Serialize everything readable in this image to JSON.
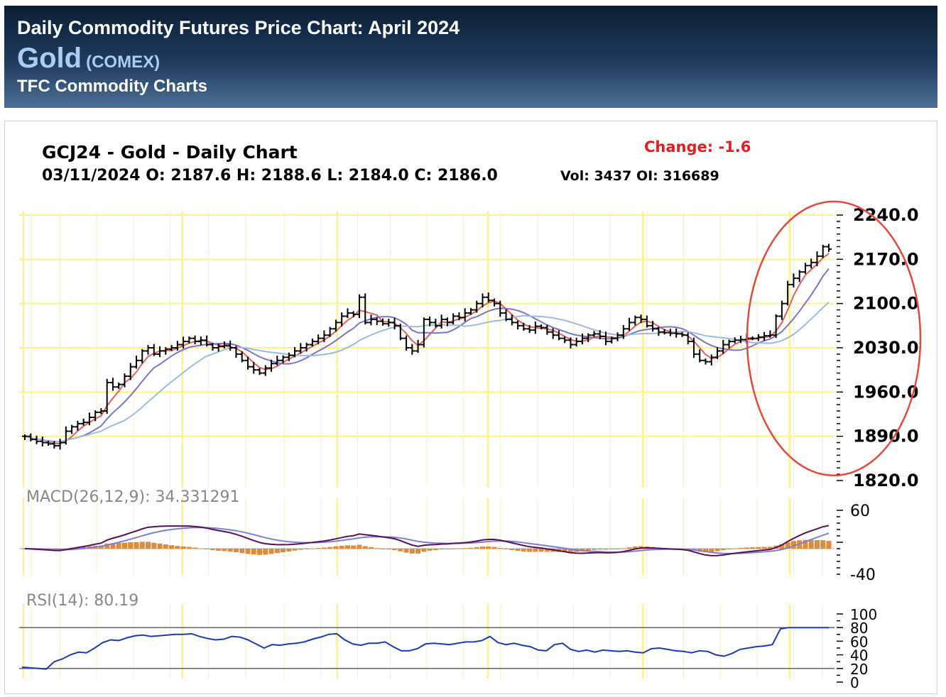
{
  "header": {
    "title": "Daily Commodity Futures Price Chart: April 2024",
    "symbol": "Gold",
    "exchange": "(COMEX)",
    "subtitle": "TFC Commodity Charts"
  },
  "chart_header": {
    "title": "GCJ24 - Gold - Daily Chart",
    "ohlc_line": "03/11/2024 O: 2187.6 H: 2188.6 L: 2184.0 C: 2186.0",
    "vol_oi": "Vol: 3437 OI: 316689",
    "change": "Change: -1.6"
  },
  "colors": {
    "bars": "#000000",
    "ma_short": "#e0605a",
    "ma_mid": "#7b74cc",
    "ma_long": "#98bde0",
    "highlight_ellipse": "#e04a3a",
    "change_text": "#e02020",
    "grid_major": "#fff28a",
    "macd_line": "#5a1050",
    "macd_signal": "#7b7fdc",
    "macd_hist": "#e08a3a",
    "rsi_line": "#1a3cb0"
  },
  "chart_data": [
    {
      "type": "ohlc",
      "title": "GCJ24 - Gold - Daily Chart",
      "ylim": [
        1820,
        2240
      ],
      "yticks": [
        "2240.0",
        "2170.0",
        "2100.0",
        "2030.0",
        "1960.0",
        "1890.0",
        "1820.0"
      ],
      "close": [
        1890,
        1885,
        1882,
        1880,
        1878,
        1875,
        1880,
        1898,
        1905,
        1910,
        1912,
        1920,
        1928,
        1930,
        1975,
        1968,
        1972,
        1985,
        2000,
        2010,
        2025,
        2030,
        2020,
        2025,
        2028,
        2030,
        2035,
        2040,
        2045,
        2040,
        2042,
        2035,
        2030,
        2032,
        2034,
        2030,
        2020,
        2010,
        2000,
        1995,
        1990,
        1998,
        2005,
        2010,
        2015,
        2018,
        2025,
        2030,
        2035,
        2040,
        2045,
        2050,
        2060,
        2070,
        2080,
        2085,
        2083,
        2110,
        2070,
        2075,
        2072,
        2068,
        2070,
        2065,
        2045,
        2030,
        2025,
        2035,
        2075,
        2070,
        2065,
        2075,
        2070,
        2080,
        2078,
        2085,
        2090,
        2100,
        2110,
        2105,
        2100,
        2085,
        2075,
        2070,
        2065,
        2060,
        2058,
        2064,
        2062,
        2055,
        2050,
        2045,
        2042,
        2035,
        2040,
        2045,
        2050,
        2052,
        2048,
        2040,
        2045,
        2050,
        2060,
        2070,
        2078,
        2075,
        2065,
        2060,
        2055,
        2054,
        2053,
        2052,
        2050,
        2040,
        2020,
        2010,
        2008,
        2015,
        2025,
        2035,
        2040,
        2042,
        2043,
        2045,
        2045,
        2047,
        2049,
        2050,
        2080,
        2100,
        2130,
        2140,
        2150,
        2160,
        2165,
        2175,
        2190,
        2186
      ]
    },
    {
      "type": "line",
      "title": "MACD(26,12,9): 34.331291",
      "ylim": [
        -40,
        60
      ],
      "yticks": [
        "60",
        "-40"
      ]
    },
    {
      "type": "line",
      "title": "RSI(14): 80.19",
      "ylim": [
        0,
        100
      ],
      "yticks": [
        "100",
        "80",
        "60",
        "40",
        "20",
        "0"
      ],
      "rsi": [
        22,
        21,
        20,
        19,
        30,
        34,
        40,
        44,
        43,
        50,
        58,
        62,
        61,
        65,
        68,
        69,
        67,
        68,
        69,
        70,
        70,
        71,
        67,
        64,
        62,
        63,
        67,
        66,
        62,
        56,
        50,
        55,
        54,
        56,
        57,
        59,
        63,
        66,
        70,
        71,
        62,
        56,
        54,
        57,
        57,
        59,
        52,
        46,
        46,
        49,
        56,
        57,
        56,
        55,
        57,
        59,
        59,
        61,
        67,
        58,
        55,
        57,
        54,
        52,
        47,
        46,
        55,
        57,
        48,
        45,
        47,
        44,
        47,
        46,
        45,
        46,
        44,
        43,
        49,
        50,
        48,
        46,
        45,
        43,
        46,
        45,
        40,
        38,
        42,
        48,
        50,
        52,
        53,
        55,
        78,
        80,
        80,
        80,
        80,
        80,
        80
      ]
    }
  ]
}
